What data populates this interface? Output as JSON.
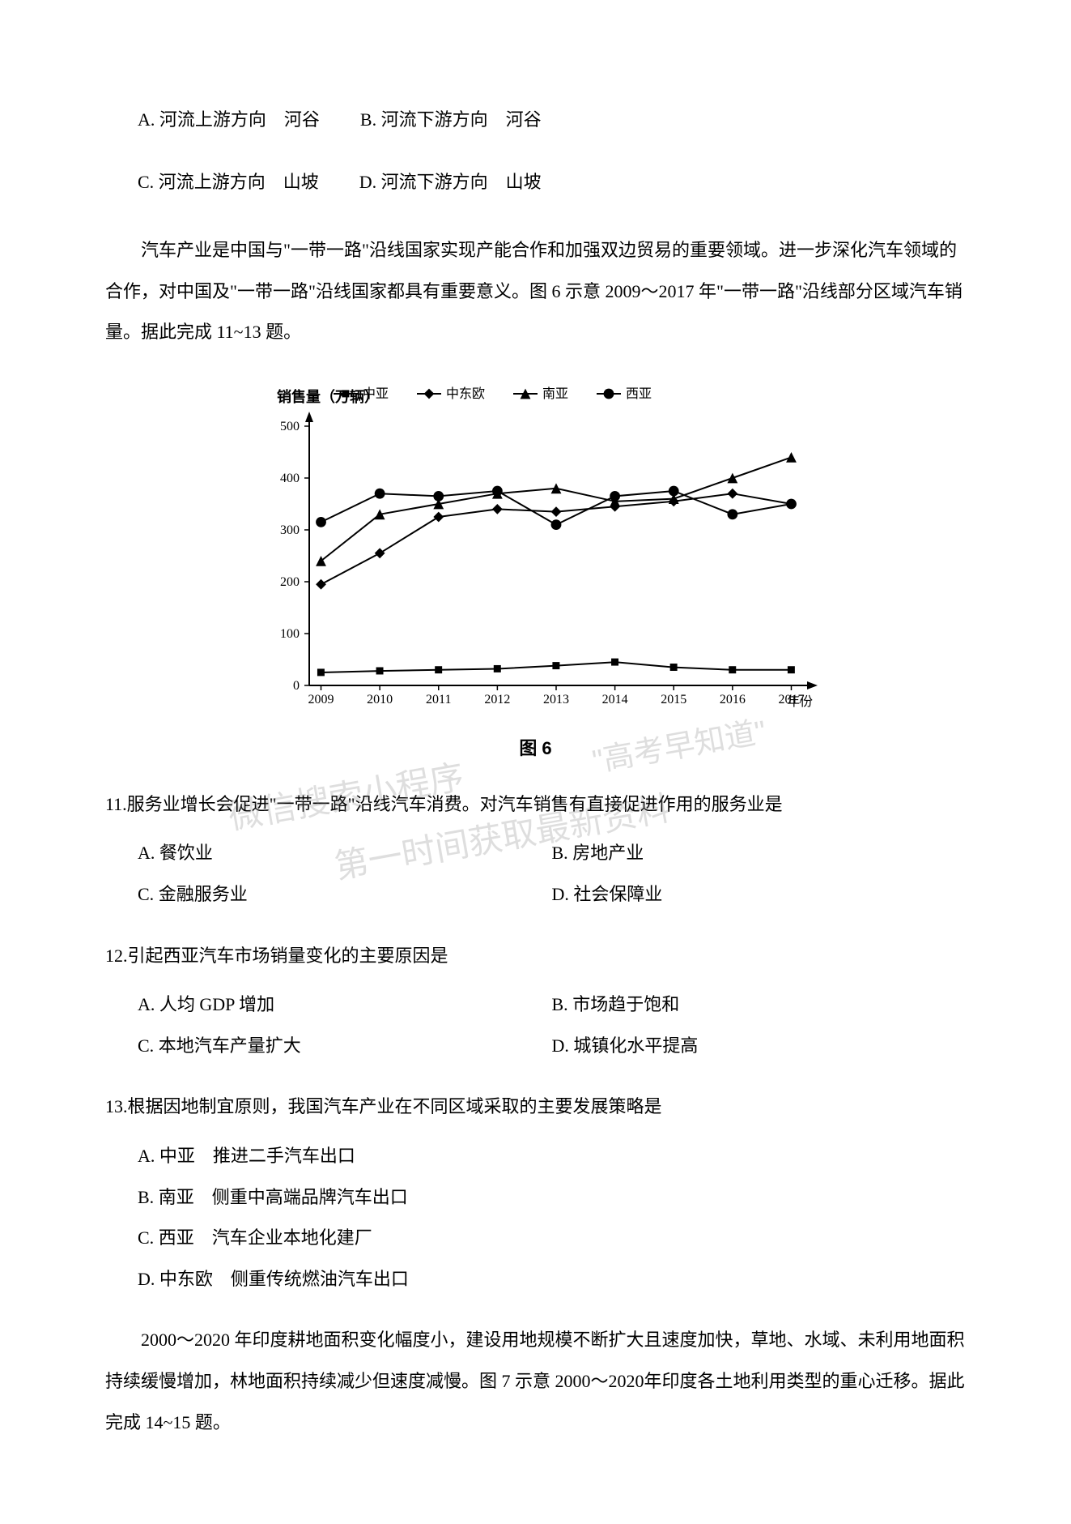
{
  "top_options": {
    "row1": [
      {
        "label": "A.",
        "text": "河流上游方向　河谷"
      },
      {
        "label": "B.",
        "text": "河流下游方向　河谷"
      }
    ],
    "row2": [
      {
        "label": "C.",
        "text": "河流上游方向　山坡"
      },
      {
        "label": "D.",
        "text": "河流下游方向　山坡"
      }
    ]
  },
  "intro_para": "汽车产业是中国与\"一带一路\"沿线国家实现产能合作和加强双边贸易的重要领域。进一步深化汽车领域的合作，对中国及\"一带一路\"沿线国家都具有重要意义。图 6 示意 2009～2017 年\"一带一路\"沿线部分区域汽车销量。据此完成 11~13 题。",
  "chart": {
    "type": "line",
    "y_label": "销售量（万辆）",
    "x_label": "年份",
    "title": "图 6",
    "x_categories": [
      "2009",
      "2010",
      "2011",
      "2012",
      "2013",
      "2014",
      "2015",
      "2016",
      "2017"
    ],
    "ylim": [
      0,
      500
    ],
    "ytick_step": 100,
    "y_ticks": [
      0,
      100,
      200,
      300,
      400,
      500
    ],
    "background_color": "#ffffff",
    "axis_color": "#000000",
    "series": [
      {
        "name": "中亚",
        "marker": "square",
        "color": "#000000",
        "values": [
          25,
          28,
          30,
          32,
          38,
          45,
          35,
          30,
          30
        ]
      },
      {
        "name": "中东欧",
        "marker": "diamond",
        "color": "#000000",
        "values": [
          195,
          255,
          325,
          340,
          335,
          345,
          355,
          370,
          350
        ]
      },
      {
        "name": "南亚",
        "marker": "triangle",
        "color": "#000000",
        "values": [
          240,
          330,
          350,
          370,
          380,
          355,
          360,
          400,
          440
        ]
      },
      {
        "name": "西亚",
        "marker": "circle",
        "color": "#000000",
        "values": [
          315,
          370,
          365,
          375,
          310,
          365,
          375,
          330,
          350
        ]
      }
    ],
    "legend_position": "top",
    "axis_fontsize": 18,
    "tick_fontsize": 16,
    "line_width": 2,
    "marker_size": 8
  },
  "q11": {
    "stem": "11.服务业增长会促进\"一带一路\"沿线汽车消费。对汽车销售有直接促进作用的服务业是",
    "opts": [
      {
        "label": "A.",
        "text": "餐饮业"
      },
      {
        "label": "B.",
        "text": "房地产业"
      },
      {
        "label": "C.",
        "text": "金融服务业"
      },
      {
        "label": "D.",
        "text": "社会保障业"
      }
    ]
  },
  "q12": {
    "stem": "12.引起西亚汽车市场销量变化的主要原因是",
    "opts": [
      {
        "label": "A.",
        "text": "人均 GDP 增加"
      },
      {
        "label": "B.",
        "text": "市场趋于饱和"
      },
      {
        "label": "C.",
        "text": "本地汽车产量扩大"
      },
      {
        "label": "D.",
        "text": "城镇化水平提高"
      }
    ]
  },
  "q13": {
    "stem": "13.根据因地制宜原则，我国汽车产业在不同区域采取的主要发展策略是",
    "opts": [
      {
        "label": "A.",
        "text": "中亚　推进二手汽车出口"
      },
      {
        "label": "B.",
        "text": "南亚　侧重中高端品牌汽车出口"
      },
      {
        "label": "C.",
        "text": "西亚　汽车企业本地化建厂"
      },
      {
        "label": "D.",
        "text": "中东欧　侧重传统燃油汽车出口"
      }
    ]
  },
  "bottom_para": "2000～2020 年印度耕地面积变化幅度小，建设用地规模不断扩大且速度加快，草地、水域、未利用地面积持续缓慢增加，林地面积持续减少但速度减慢。图 7 示意 2000～2020年印度各土地利用类型的重心迁移。据此完成 14~15 题。",
  "watermarks": {
    "w1": "\"高考早知道\"",
    "w2": "微信搜索小程序",
    "w3": "第一时间获取最新资料"
  }
}
